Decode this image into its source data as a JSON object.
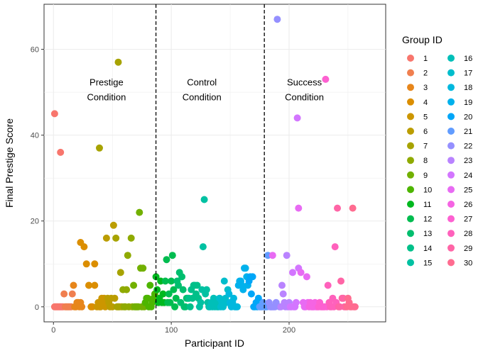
{
  "chart_data": {
    "type": "scatter",
    "xlabel": "Participant ID",
    "ylabel": "Final Prestige Score",
    "xlim": [
      -8,
      282
    ],
    "ylim": [
      -3.5,
      70.5
    ],
    "x_ticks": [
      0,
      100,
      200
    ],
    "y_ticks": [
      0,
      20,
      40,
      60
    ],
    "grid": true,
    "vlines": [
      87,
      179
    ],
    "annotations": [
      {
        "lines": [
          "Prestige",
          "Condition"
        ],
        "x": 45,
        "y": 50.5
      },
      {
        "lines": [
          "Control",
          "Condition"
        ],
        "x": 126,
        "y": 50.5
      },
      {
        "lines": [
          "Success",
          "Condition"
        ],
        "x": 213,
        "y": 50.5
      }
    ],
    "legend": {
      "title": "Group ID",
      "position": "right",
      "items": [
        "1",
        "2",
        "3",
        "4",
        "5",
        "6",
        "7",
        "8",
        "9",
        "10",
        "11",
        "12",
        "13",
        "14",
        "15",
        "16",
        "17",
        "18",
        "19",
        "20",
        "21",
        "22",
        "23",
        "24",
        "25",
        "26",
        "27",
        "28",
        "29",
        "30"
      ],
      "colors": [
        "#F8766D",
        "#F07F4F",
        "#E7861B",
        "#DB8E00",
        "#CC9600",
        "#BB9D00",
        "#A7A300",
        "#8FAA00",
        "#72B000",
        "#4DB500",
        "#00B81F",
        "#00BC4F",
        "#00BE6E",
        "#00C089",
        "#00C1A2",
        "#00BFB8",
        "#00BDCC",
        "#00B8DE",
        "#00B1EC",
        "#00A6F8",
        "#619CFF",
        "#9590FF",
        "#B983FF",
        "#D376FF",
        "#E86BF3",
        "#F564E3",
        "#FD61D1",
        "#FF61BC",
        "#FF65A6",
        "#FF6C90"
      ]
    },
    "series": [
      {
        "name": "1",
        "points": [
          [
            1,
            45
          ],
          [
            6,
            36
          ],
          [
            1,
            0
          ],
          [
            2,
            0
          ],
          [
            3,
            0
          ],
          [
            4,
            0
          ],
          [
            5,
            0
          ],
          [
            6,
            0
          ],
          [
            7,
            0
          ],
          [
            8,
            0
          ]
        ]
      },
      {
        "name": "2",
        "points": [
          [
            9,
            3
          ],
          [
            10,
            0
          ],
          [
            11,
            0
          ],
          [
            12,
            0
          ],
          [
            13,
            0
          ],
          [
            14,
            0
          ],
          [
            15,
            0
          ],
          [
            16,
            3
          ]
        ]
      },
      {
        "name": "3",
        "points": [
          [
            17,
            5
          ],
          [
            18,
            0
          ],
          [
            19,
            0
          ],
          [
            20,
            1
          ],
          [
            21,
            1
          ],
          [
            22,
            0
          ],
          [
            23,
            1
          ],
          [
            24,
            0
          ]
        ]
      },
      {
        "name": "4",
        "points": [
          [
            23,
            15
          ],
          [
            26,
            14
          ],
          [
            28,
            10
          ],
          [
            30,
            5
          ],
          [
            32,
            0
          ],
          [
            33,
            0
          ],
          [
            35,
            5
          ],
          [
            35,
            10
          ]
        ]
      },
      {
        "name": "5",
        "points": [
          [
            37,
            0
          ],
          [
            38,
            1
          ],
          [
            39,
            0
          ],
          [
            40,
            0
          ],
          [
            41,
            2
          ],
          [
            42,
            1
          ],
          [
            43,
            2
          ],
          [
            44,
            0
          ]
        ]
      },
      {
        "name": "6",
        "points": [
          [
            45,
            16
          ],
          [
            46,
            2
          ],
          [
            47,
            1
          ],
          [
            48,
            0
          ],
          [
            49,
            2
          ],
          [
            50,
            0
          ],
          [
            51,
            19
          ],
          [
            52,
            2
          ]
        ]
      },
      {
        "name": "7",
        "points": [
          [
            39,
            37
          ],
          [
            53,
            16
          ],
          [
            54,
            0
          ],
          [
            55,
            57
          ],
          [
            55,
            0
          ],
          [
            56,
            0
          ],
          [
            57,
            8
          ],
          [
            58,
            0
          ]
        ]
      },
      {
        "name": "8",
        "points": [
          [
            59,
            4
          ],
          [
            60,
            0
          ],
          [
            61,
            0
          ],
          [
            62,
            4
          ],
          [
            63,
            12
          ],
          [
            64,
            0
          ],
          [
            66,
            16
          ],
          [
            67,
            0
          ]
        ]
      },
      {
        "name": "9",
        "points": [
          [
            68,
            5
          ],
          [
            69,
            0
          ],
          [
            70,
            0
          ],
          [
            71,
            0
          ],
          [
            72,
            0
          ],
          [
            73,
            22
          ],
          [
            74,
            9
          ],
          [
            75,
            0
          ],
          [
            76,
            9
          ],
          [
            77,
            0
          ]
        ]
      },
      {
        "name": "10",
        "points": [
          [
            78,
            1
          ],
          [
            79,
            2
          ],
          [
            80,
            2
          ],
          [
            81,
            0
          ],
          [
            82,
            5
          ],
          [
            83,
            0
          ],
          [
            84,
            1
          ],
          [
            85,
            2
          ],
          [
            86,
            3
          ]
        ]
      },
      {
        "name": "11",
        "points": [
          [
            87,
            7
          ],
          [
            88,
            4
          ],
          [
            89,
            1
          ],
          [
            90,
            2
          ],
          [
            91,
            6
          ],
          [
            92,
            1
          ],
          [
            93,
            3
          ],
          [
            94,
            1
          ]
        ]
      },
      {
        "name": "12",
        "points": [
          [
            95,
            6
          ],
          [
            96,
            11
          ],
          [
            97,
            1
          ],
          [
            98,
            3
          ],
          [
            99,
            1
          ],
          [
            100,
            6
          ],
          [
            101,
            12
          ],
          [
            102,
            4
          ],
          [
            103,
            0
          ],
          [
            104,
            2
          ]
        ]
      },
      {
        "name": "13",
        "points": [
          [
            105,
            6
          ],
          [
            106,
            5
          ],
          [
            107,
            8
          ],
          [
            108,
            1
          ],
          [
            109,
            7
          ],
          [
            110,
            4
          ],
          [
            111,
            0
          ],
          [
            112,
            0
          ],
          [
            113,
            2
          ],
          [
            114,
            2
          ]
        ]
      },
      {
        "name": "14",
        "points": [
          [
            115,
            2
          ],
          [
            116,
            0
          ],
          [
            117,
            4
          ],
          [
            118,
            2
          ],
          [
            119,
            5
          ],
          [
            120,
            5
          ],
          [
            121,
            3
          ],
          [
            122,
            5
          ],
          [
            123,
            2
          ]
        ]
      },
      {
        "name": "15",
        "points": [
          [
            124,
            0
          ],
          [
            125,
            1
          ],
          [
            126,
            4
          ],
          [
            127,
            14
          ],
          [
            128,
            25
          ],
          [
            129,
            3
          ],
          [
            130,
            4
          ],
          [
            131,
            1
          ],
          [
            132,
            0
          ]
        ]
      },
      {
        "name": "16",
        "points": [
          [
            133,
            0
          ],
          [
            134,
            1
          ],
          [
            135,
            0
          ],
          [
            136,
            2
          ],
          [
            137,
            0
          ],
          [
            138,
            1
          ],
          [
            139,
            0
          ],
          [
            140,
            0
          ]
        ]
      },
      {
        "name": "17",
        "points": [
          [
            141,
            2
          ],
          [
            142,
            0
          ],
          [
            143,
            1
          ],
          [
            144,
            0
          ],
          [
            145,
            6
          ],
          [
            146,
            2
          ],
          [
            147,
            1
          ],
          [
            148,
            4
          ]
        ]
      },
      {
        "name": "18",
        "points": [
          [
            149,
            3
          ],
          [
            150,
            1
          ],
          [
            151,
            0
          ],
          [
            152,
            1
          ],
          [
            153,
            2
          ],
          [
            154,
            0
          ],
          [
            155,
            0
          ],
          [
            156,
            0
          ]
        ]
      },
      {
        "name": "19",
        "points": [
          [
            157,
            5
          ],
          [
            158,
            6
          ],
          [
            159,
            6
          ],
          [
            160,
            5
          ],
          [
            161,
            4
          ],
          [
            162,
            9
          ],
          [
            163,
            9
          ],
          [
            164,
            7
          ],
          [
            165,
            5
          ]
        ]
      },
      {
        "name": "20",
        "points": [
          [
            166,
            6
          ],
          [
            167,
            7
          ],
          [
            168,
            3
          ],
          [
            169,
            7
          ],
          [
            170,
            0
          ],
          [
            171,
            0
          ],
          [
            172,
            1
          ],
          [
            173,
            0
          ],
          [
            174,
            2
          ]
        ]
      },
      {
        "name": "21",
        "points": [
          [
            175,
            0
          ],
          [
            176,
            0
          ],
          [
            177,
            0
          ],
          [
            178,
            1
          ],
          [
            179,
            0
          ],
          [
            180,
            0
          ],
          [
            181,
            0
          ],
          [
            182,
            12
          ]
        ]
      },
      {
        "name": "22",
        "points": [
          [
            183,
            1
          ],
          [
            184,
            0
          ],
          [
            185,
            0
          ],
          [
            186,
            0
          ],
          [
            187,
            0
          ],
          [
            188,
            0
          ],
          [
            189,
            1
          ],
          [
            190,
            67
          ],
          [
            192,
            0
          ]
        ]
      },
      {
        "name": "23",
        "points": [
          [
            193,
            0
          ],
          [
            194,
            5
          ],
          [
            195,
            3
          ],
          [
            196,
            1
          ],
          [
            197,
            0
          ],
          [
            198,
            12
          ],
          [
            199,
            0
          ],
          [
            200,
            1
          ]
        ]
      },
      {
        "name": "24",
        "points": [
          [
            201,
            0
          ],
          [
            202,
            0
          ],
          [
            203,
            8
          ],
          [
            204,
            0
          ],
          [
            205,
            0
          ],
          [
            206,
            1
          ],
          [
            207,
            44
          ],
          [
            208,
            9
          ]
        ]
      },
      {
        "name": "25",
        "points": [
          [
            186,
            12
          ],
          [
            208,
            23
          ],
          [
            210,
            8
          ],
          [
            212,
            1
          ],
          [
            213,
            0
          ],
          [
            214,
            0
          ],
          [
            215,
            7
          ],
          [
            216,
            1
          ]
        ]
      },
      {
        "name": "26",
        "points": [
          [
            217,
            0
          ],
          [
            218,
            1
          ],
          [
            219,
            0
          ],
          [
            220,
            0
          ],
          [
            221,
            0
          ],
          [
            222,
            1
          ],
          [
            223,
            0
          ],
          [
            224,
            0
          ]
        ]
      },
      {
        "name": "27",
        "points": [
          [
            225,
            0
          ],
          [
            226,
            1
          ],
          [
            227,
            0
          ],
          [
            228,
            0
          ],
          [
            229,
            0
          ],
          [
            230,
            0
          ],
          [
            231,
            53
          ],
          [
            232,
            0
          ]
        ]
      },
      {
        "name": "28",
        "points": [
          [
            233,
            5
          ],
          [
            234,
            1
          ],
          [
            235,
            0
          ],
          [
            236,
            0
          ],
          [
            237,
            2
          ],
          [
            238,
            0
          ],
          [
            239,
            14
          ],
          [
            240,
            1
          ]
        ]
      },
      {
        "name": "29",
        "points": [
          [
            241,
            23
          ],
          [
            242,
            0
          ],
          [
            243,
            0
          ],
          [
            244,
            6
          ],
          [
            245,
            2
          ],
          [
            246,
            2
          ],
          [
            247,
            0
          ],
          [
            248,
            0
          ]
        ]
      },
      {
        "name": "30",
        "points": [
          [
            249,
            0
          ],
          [
            250,
            2
          ],
          [
            251,
            1
          ],
          [
            252,
            0
          ],
          [
            253,
            0
          ],
          [
            254,
            23
          ],
          [
            255,
            0
          ],
          [
            256,
            0
          ]
        ]
      }
    ]
  }
}
